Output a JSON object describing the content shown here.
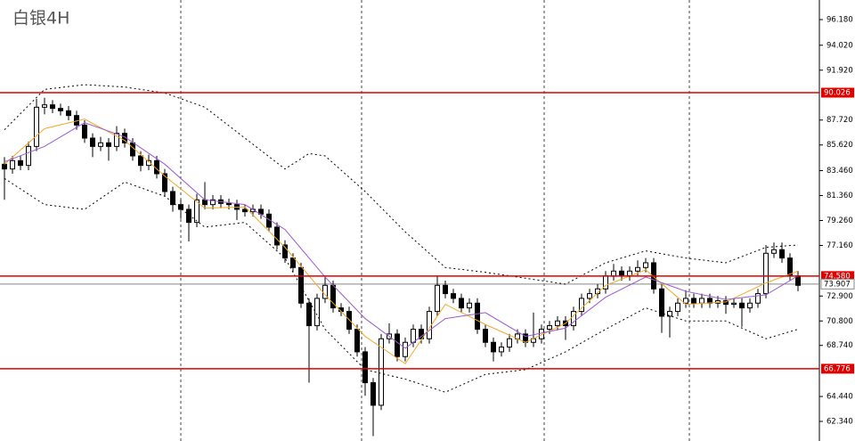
{
  "chart_data": {
    "type": "candlestick",
    "title": "白银4H",
    "ylim": [
      60.69,
      97.83
    ],
    "yticks": [
      {
        "value": 96.18,
        "label": "96.180"
      },
      {
        "value": 94.02,
        "label": "94.020"
      },
      {
        "value": 91.92,
        "label": "91.920"
      },
      {
        "value": 87.72,
        "label": "87.720"
      },
      {
        "value": 85.62,
        "label": "85.620"
      },
      {
        "value": 83.46,
        "label": "83.460"
      },
      {
        "value": 81.36,
        "label": "81.360"
      },
      {
        "value": 79.26,
        "label": "79.260"
      },
      {
        "value": 77.16,
        "label": "77.160"
      },
      {
        "value": 72.9,
        "label": "72.900"
      },
      {
        "value": 70.8,
        "label": "70.800"
      },
      {
        "value": 68.74,
        "label": "68.740"
      },
      {
        "value": 64.44,
        "label": "64.440"
      },
      {
        "value": 62.34,
        "label": "62.340"
      }
    ],
    "levels": [
      90.026,
      {
        "value": 74.58,
        "label": "74.580"
      },
      66.776
    ],
    "level_color": "#e00000",
    "last_price": 73.907,
    "up_color": "#ffffff",
    "down_color": "#000000",
    "candles": {
      "open": [
        84.0,
        83.6,
        84.3,
        83.9,
        85.5,
        88.8,
        89.0,
        88.7,
        88.5,
        88.1,
        87.3,
        86.2,
        85.5,
        85.8,
        85.5,
        86.6,
        85.8,
        84.7,
        83.9,
        84.3,
        83.2,
        81.7,
        80.6,
        80.2,
        79.1,
        81.0,
        80.6,
        81.0,
        80.7,
        80.6,
        80.2,
        80.0,
        80.2,
        79.8,
        78.7,
        77.2,
        76.1,
        75.3,
        72.3,
        70.4,
        72.7,
        73.8,
        71.9,
        71.6,
        70.1,
        68.2,
        65.6,
        63.7,
        69.3,
        69.7,
        67.8,
        69.0,
        70.1,
        69.3,
        71.6,
        73.8,
        73.1,
        72.7,
        71.9,
        72.3,
        70.1,
        69.0,
        68.2,
        68.6,
        69.3,
        69.7,
        69.0,
        69.3,
        70.1,
        70.4,
        70.8,
        70.4,
        71.6,
        72.7,
        73.1,
        73.5,
        74.6,
        75.0,
        74.6,
        75.0,
        75.3,
        75.7,
        73.5,
        71.2,
        71.6,
        72.3,
        72.7,
        72.3,
        72.7,
        72.3,
        72.5,
        72.2,
        72.3,
        71.9,
        72.3,
        73.1,
        76.5,
        76.8,
        76.1,
        74.6
      ],
      "high": [
        84.6,
        84.7,
        84.7,
        85.9,
        89.5,
        89.6,
        89.4,
        89.1,
        88.9,
        88.5,
        87.7,
        86.6,
        86.3,
        86.2,
        87.2,
        87.0,
        86.2,
        85.1,
        84.8,
        84.7,
        83.6,
        82.1,
        81.0,
        80.6,
        81.5,
        82.5,
        81.4,
        81.4,
        81.1,
        81.0,
        80.6,
        80.6,
        80.6,
        80.2,
        79.1,
        77.6,
        76.5,
        75.7,
        72.7,
        73.1,
        74.5,
        74.2,
        72.3,
        72.0,
        70.5,
        68.6,
        66.0,
        69.7,
        70.6,
        70.1,
        69.4,
        70.5,
        70.5,
        72.0,
        74.6,
        74.2,
        73.5,
        73.1,
        72.7,
        72.7,
        70.5,
        69.4,
        69.0,
        69.7,
        70.1,
        70.1,
        71.5,
        70.5,
        70.8,
        71.2,
        71.2,
        72.0,
        73.1,
        73.5,
        73.9,
        75.0,
        75.6,
        75.4,
        75.4,
        75.9,
        76.1,
        76.1,
        73.9,
        72.0,
        72.7,
        73.4,
        73.1,
        73.1,
        73.1,
        72.9,
        72.9,
        72.7,
        72.7,
        72.7,
        73.5,
        77.2,
        77.4,
        77.4,
        76.5,
        75.0
      ],
      "low": [
        81.0,
        83.2,
        83.5,
        83.5,
        85.1,
        88.2,
        88.3,
        88.1,
        87.7,
        86.9,
        85.8,
        84.6,
        85.1,
        84.3,
        85.1,
        85.4,
        84.3,
        83.4,
        83.5,
        82.8,
        81.3,
        80.0,
        79.4,
        77.5,
        78.7,
        80.2,
        80.2,
        80.3,
        80.2,
        79.3,
        79.6,
        79.6,
        79.4,
        78.3,
        76.8,
        75.7,
        74.9,
        71.9,
        65.6,
        70.0,
        72.3,
        71.5,
        71.2,
        69.7,
        67.8,
        64.5,
        61.1,
        63.3,
        68.9,
        67.4,
        67.4,
        68.6,
        68.9,
        68.9,
        71.2,
        72.7,
        72.3,
        71.5,
        71.5,
        69.7,
        68.6,
        67.4,
        67.8,
        68.2,
        68.9,
        68.6,
        68.6,
        68.9,
        69.7,
        70.0,
        69.2,
        70.0,
        71.2,
        72.3,
        72.7,
        73.1,
        74.2,
        74.2,
        74.2,
        74.6,
        74.9,
        73.1,
        69.8,
        69.4,
        71.2,
        71.9,
        71.9,
        71.9,
        71.9,
        71.9,
        71.4,
        71.9,
        70.3,
        71.5,
        71.9,
        72.7,
        76.1,
        75.7,
        74.2,
        73.3
      ],
      "close": [
        83.6,
        84.3,
        83.9,
        85.5,
        88.8,
        89.0,
        88.7,
        88.5,
        88.1,
        87.3,
        86.2,
        85.5,
        85.8,
        85.5,
        86.6,
        85.8,
        84.7,
        83.9,
        84.3,
        83.2,
        81.7,
        80.6,
        80.2,
        79.1,
        81.0,
        80.6,
        81.0,
        80.7,
        80.6,
        80.2,
        80.0,
        80.2,
        79.8,
        78.7,
        77.2,
        76.1,
        75.3,
        72.3,
        70.4,
        72.7,
        73.8,
        71.9,
        71.6,
        70.1,
        68.2,
        65.6,
        63.7,
        69.3,
        69.7,
        67.8,
        69.0,
        70.1,
        69.3,
        71.6,
        73.8,
        73.1,
        72.7,
        71.9,
        72.3,
        70.1,
        69.0,
        68.2,
        68.6,
        69.3,
        69.7,
        69.0,
        69.3,
        70.1,
        70.4,
        70.8,
        70.4,
        71.6,
        72.7,
        73.1,
        73.5,
        74.6,
        75.0,
        74.6,
        75.0,
        75.3,
        75.7,
        73.5,
        71.2,
        71.6,
        72.3,
        72.7,
        72.3,
        72.7,
        72.3,
        72.5,
        72.2,
        72.3,
        71.9,
        72.3,
        73.1,
        76.5,
        76.8,
        76.1,
        74.6,
        73.8
      ]
    },
    "lines": [
      {
        "color": "#f5a623",
        "dashed": false,
        "x": [
          0,
          5,
          10,
          15,
          20,
          25,
          30,
          35,
          40,
          45,
          50,
          55,
          60,
          65,
          70,
          75,
          80,
          85,
          90,
          95,
          99
        ],
        "values": [
          84.0,
          87.0,
          87.8,
          86.0,
          83.0,
          80.3,
          80.4,
          77.0,
          73.0,
          69.5,
          67.2,
          72.2,
          70.5,
          69.0,
          70.6,
          73.8,
          75.1,
          72.2,
          72.4,
          74.0,
          75.0
        ]
      },
      {
        "color": "#9b59d0",
        "dashed": false,
        "x": [
          0,
          5,
          10,
          15,
          20,
          25,
          30,
          35,
          40,
          45,
          50,
          55,
          60,
          65,
          70,
          75,
          80,
          85,
          90,
          95,
          99
        ],
        "values": [
          84.2,
          85.5,
          87.5,
          86.3,
          84.0,
          81.0,
          80.6,
          78.5,
          74.5,
          71.0,
          68.5,
          71.0,
          71.5,
          69.5,
          70.2,
          72.8,
          74.5,
          73.3,
          72.6,
          73.0,
          74.6
        ]
      },
      {
        "color": "#000000",
        "dashed": true,
        "x": [
          0,
          5,
          10,
          15,
          20,
          25,
          30,
          35,
          38,
          40,
          45,
          50,
          55,
          60,
          65,
          70,
          75,
          80,
          85,
          90,
          95,
          99
        ],
        "values": [
          86.9,
          90.3,
          90.7,
          90.5,
          90.0,
          88.8,
          86.2,
          83.6,
          84.9,
          84.7,
          81.7,
          78.3,
          75.3,
          74.9,
          74.4,
          73.9,
          75.7,
          76.7,
          76.1,
          75.7,
          77.0,
          77.2
        ]
      },
      {
        "color": "#000000",
        "dashed": true,
        "x": [
          0,
          5,
          10,
          15,
          20,
          25,
          30,
          35,
          40,
          45,
          50,
          55,
          60,
          65,
          70,
          75,
          80,
          85,
          90,
          95,
          99
        ],
        "values": [
          82.8,
          80.6,
          80.2,
          82.5,
          81.3,
          78.7,
          79.1,
          76.1,
          70.1,
          66.7,
          65.9,
          64.8,
          66.3,
          66.7,
          68.2,
          70.1,
          71.9,
          70.8,
          70.8,
          69.3,
          70.1
        ]
      }
    ]
  }
}
